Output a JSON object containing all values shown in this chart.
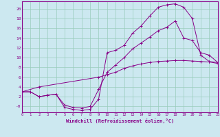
{
  "xlabel": "Windchill (Refroidissement éolien,°C)",
  "bg_color": "#cce8f0",
  "grid_color": "#99ccbb",
  "line_color": "#880088",
  "xlim": [
    0,
    23
  ],
  "ylim": [
    -1.2,
    21.5
  ],
  "xticks": [
    0,
    1,
    2,
    3,
    4,
    5,
    6,
    7,
    8,
    9,
    10,
    11,
    12,
    13,
    14,
    15,
    16,
    17,
    18,
    19,
    20,
    21,
    22,
    23
  ],
  "yticks": [
    0,
    2,
    4,
    6,
    8,
    10,
    12,
    14,
    16,
    18,
    20
  ],
  "ytick_labels": [
    "-0",
    "2",
    "4",
    "6",
    "8",
    "10",
    "12",
    "14",
    "16",
    "18",
    "20"
  ],
  "line1_x": [
    0,
    1,
    2,
    3,
    4,
    5,
    6,
    7,
    8,
    9,
    10,
    11,
    12,
    13,
    14,
    15,
    16,
    17,
    18,
    19,
    20,
    21,
    22,
    23
  ],
  "line1_y": [
    3.0,
    3.0,
    2.0,
    2.3,
    2.5,
    -0.2,
    -0.6,
    -0.8,
    -0.6,
    1.5,
    11.0,
    11.5,
    12.5,
    15.0,
    16.5,
    18.5,
    20.3,
    20.8,
    21.0,
    20.3,
    18.0,
    10.5,
    9.2,
    9.0
  ],
  "line2_x": [
    0,
    2,
    9,
    10,
    11,
    12,
    13,
    14,
    15,
    16,
    17,
    18,
    19,
    20,
    21,
    22,
    23
  ],
  "line2_y": [
    3.0,
    4.0,
    6.0,
    6.5,
    7.0,
    7.8,
    8.3,
    8.7,
    9.0,
    9.2,
    9.3,
    9.4,
    9.4,
    9.3,
    9.2,
    9.1,
    8.8
  ],
  "line3_x": [
    0,
    1,
    2,
    3,
    4,
    5,
    6,
    7,
    8,
    9,
    10,
    11,
    12,
    13,
    14,
    15,
    16,
    17,
    18,
    19,
    20,
    21,
    22,
    23
  ],
  "line3_y": [
    3.0,
    3.0,
    2.0,
    2.3,
    2.5,
    0.3,
    -0.2,
    -0.3,
    0.0,
    3.5,
    7.0,
    8.5,
    10.0,
    11.8,
    13.0,
    14.2,
    15.5,
    16.2,
    17.5,
    14.0,
    13.5,
    11.0,
    10.5,
    9.0
  ]
}
